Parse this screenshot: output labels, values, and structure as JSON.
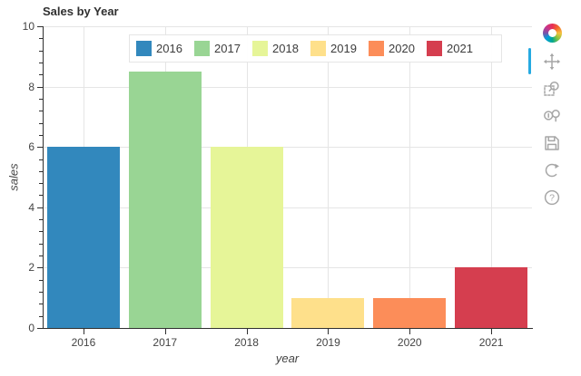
{
  "chart_data": {
    "type": "bar",
    "title": "Sales by Year",
    "categories": [
      "2016",
      "2017",
      "2018",
      "2019",
      "2020",
      "2021"
    ],
    "values": [
      6,
      8.5,
      6,
      1,
      1,
      2
    ],
    "bar_colors": [
      "#3288bd",
      "#99d594",
      "#e6f598",
      "#fee08b",
      "#fc8d59",
      "#d53e4f"
    ],
    "xlabel": "year",
    "ylabel": "sales",
    "ylim": [
      0,
      10
    ],
    "y_ticks": [
      0,
      2,
      4,
      6,
      8,
      10
    ],
    "grid": true,
    "legend_position": "top"
  },
  "legend": {
    "entries": [
      {
        "label": "2016",
        "color": "#3288bd"
      },
      {
        "label": "2017",
        "color": "#99d594"
      },
      {
        "label": "2018",
        "color": "#e6f598"
      },
      {
        "label": "2019",
        "color": "#fee08b"
      },
      {
        "label": "2020",
        "color": "#fc8d59"
      },
      {
        "label": "2021",
        "color": "#d53e4f"
      }
    ]
  },
  "toolbar": {
    "active_tool": "pan",
    "active_indicator_color": "#26aae1",
    "icons": [
      "bokeh-logo-icon",
      "pan-icon",
      "box-zoom-icon",
      "wheel-zoom-icon",
      "save-icon",
      "reset-icon",
      "help-icon"
    ]
  },
  "colors": {
    "grid": "#e5e5e5",
    "axis_line": "#303030",
    "tick_label": "#444444",
    "title": "#303030",
    "icon": "#a6a6a6"
  }
}
